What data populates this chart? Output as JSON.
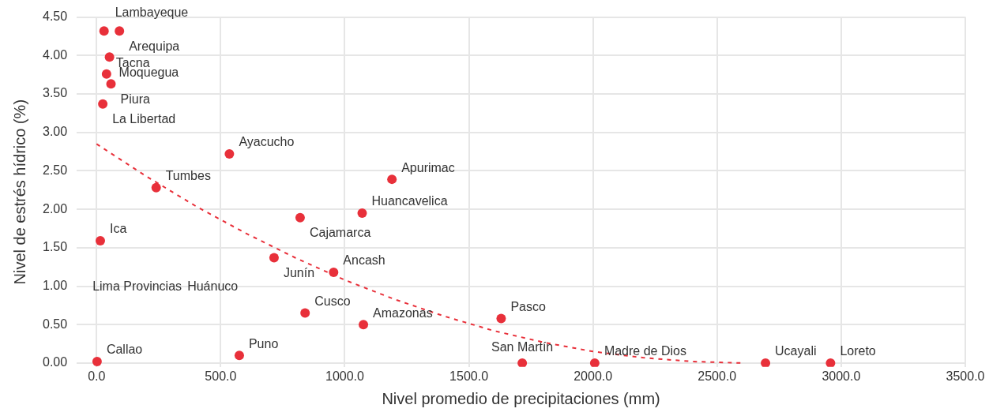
{
  "chart_data": {
    "type": "scatter",
    "xlabel": "Nivel promedio de precipitaciones (mm)",
    "ylabel": "Nivel de estrés hídrico (%)",
    "xlim": [
      -80,
      3500
    ],
    "ylim": [
      -0.05,
      4.5
    ],
    "xticks": [
      {
        "value": 0,
        "label": "0.0"
      },
      {
        "value": 500,
        "label": "500.0"
      },
      {
        "value": 1000,
        "label": "1000.0"
      },
      {
        "value": 1500,
        "label": "1500.0"
      },
      {
        "value": 2000,
        "label": "2000.0"
      },
      {
        "value": 2500,
        "label": "2500.0"
      },
      {
        "value": 3000,
        "label": "3000.0"
      },
      {
        "value": 3500,
        "label": "3500.0"
      }
    ],
    "yticks": [
      {
        "value": 0,
        "label": "0.00"
      },
      {
        "value": 0.5,
        "label": "0.50"
      },
      {
        "value": 1,
        "label": "1.00"
      },
      {
        "value": 1.5,
        "label": "1.50"
      },
      {
        "value": 2,
        "label": "2.00"
      },
      {
        "value": 2.5,
        "label": "2.50"
      },
      {
        "value": 3,
        "label": "3.00"
      },
      {
        "value": 3.5,
        "label": "3.50"
      },
      {
        "value": 4,
        "label": "4.00"
      },
      {
        "value": 4.5,
        "label": "4.50"
      }
    ],
    "grid": true,
    "legend": false,
    "marker": "circle",
    "series": [
      {
        "color": "#e8303a",
        "x": [
          30,
          92,
          52,
          40,
          58,
          25,
          535,
          240,
          1190,
          820,
          1070,
          15,
          715,
          955,
          840,
          1075,
          1630,
          2,
          575,
          1715,
          2007,
          2695,
          2957
        ],
        "values": [
          4.32,
          4.32,
          3.98,
          3.76,
          3.63,
          3.37,
          2.72,
          2.28,
          2.39,
          1.89,
          1.95,
          1.59,
          1.37,
          1.18,
          0.65,
          0.5,
          0.58,
          0.02,
          0.1,
          0,
          0,
          0,
          0
        ]
      },
      {
        "type": "line",
        "color": "#e8303a",
        "line_style": "dashed",
        "marker": "none",
        "x": [
          0,
          200,
          400,
          600,
          800,
          1000,
          1200,
          1400,
          1600,
          1800,
          2000,
          2200,
          2400,
          2600
        ],
        "values": [
          2.85,
          2.43,
          2.04,
          1.69,
          1.37,
          1.08,
          0.83,
          0.61,
          0.42,
          0.27,
          0.15,
          0.07,
          0.02,
          0
        ]
      }
    ],
    "annotations": [
      {
        "text": "Lambayeque",
        "x": 30,
        "y": 4.32
      },
      {
        "text": "Arequipa",
        "x": 92,
        "y": 4.32
      },
      {
        "text": "Moquegua",
        "x": 52,
        "y": 3.98
      },
      {
        "text": "Tacna",
        "x": 40,
        "y": 3.76
      },
      {
        "text": "Piura",
        "x": 58,
        "y": 3.63
      },
      {
        "text": "La Libertad",
        "x": 25,
        "y": 3.37
      },
      {
        "text": "Ayacucho",
        "x": 535,
        "y": 2.72
      },
      {
        "text": "Tumbes",
        "x": 240,
        "y": 2.28
      },
      {
        "text": "Apurimac",
        "x": 1190,
        "y": 2.39
      },
      {
        "text": "Cajamarca",
        "x": 820,
        "y": 1.89
      },
      {
        "text": "Huancavelica",
        "x": 1070,
        "y": 1.95
      },
      {
        "text": "Ica",
        "x": 15,
        "y": 1.59
      },
      {
        "text": "Junín",
        "x": 715,
        "y": 1.37
      },
      {
        "text": "Ancash",
        "x": 955,
        "y": 1.18
      },
      {
        "text": "Cusco",
        "x": 840,
        "y": 0.65
      },
      {
        "text": "Amazonas",
        "x": 1075,
        "y": 0.5
      },
      {
        "text": "Pasco",
        "x": 1630,
        "y": 0.58
      },
      {
        "text": "Callao",
        "x": 2,
        "y": 0.02
      },
      {
        "text": "Puno",
        "x": 575,
        "y": 0.1
      },
      {
        "text": "San Martín",
        "x": 1715,
        "y": 0
      },
      {
        "text": "Madre de Dios",
        "x": 2007,
        "y": 0
      },
      {
        "text": "Ucayali",
        "x": 2695,
        "y": 0
      },
      {
        "text": "Loreto",
        "x": 2957,
        "y": 0
      },
      "Lima Provincias",
      "Huánuco"
    ]
  }
}
